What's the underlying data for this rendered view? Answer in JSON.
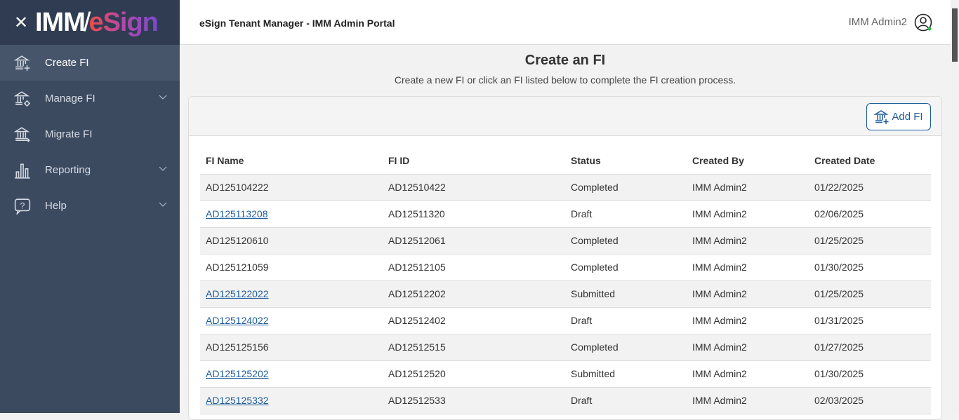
{
  "sidebar": {
    "logo": "IMM/eSign",
    "items": [
      {
        "label": "Create FI",
        "icon": "bank-plus-icon",
        "active": true,
        "chevron": false
      },
      {
        "label": "Manage FI",
        "icon": "bank-gear-icon",
        "chevron": true
      },
      {
        "label": "Migrate FI",
        "icon": "bank-arrow-icon",
        "chevron": false
      },
      {
        "label": "Reporting",
        "icon": "bar-chart-icon",
        "chevron": true
      },
      {
        "label": "Help",
        "icon": "help-bubble-icon",
        "chevron": true
      }
    ]
  },
  "header": {
    "title": "eSign Tenant Manager - IMM Admin Portal",
    "user": "IMM Admin2"
  },
  "main": {
    "title": "Create an FI",
    "subtitle": "Create a new FI or click an FI listed below to complete the FI creation process.",
    "add_label": "Add FI",
    "columns": [
      "FI Name",
      "FI ID",
      "Status",
      "Created By",
      "Created Date"
    ],
    "rows": [
      {
        "name": "AD125104222",
        "id": "AD12510422",
        "status": "Completed",
        "by": "IMM Admin2",
        "date": "01/22/2025",
        "link": false
      },
      {
        "name": "AD125113208",
        "id": "AD12511320",
        "status": "Draft",
        "by": "IMM Admin2",
        "date": "02/06/2025",
        "link": true
      },
      {
        "name": "AD125120610",
        "id": "AD12512061",
        "status": "Completed",
        "by": "IMM Admin2",
        "date": "01/25/2025",
        "link": false
      },
      {
        "name": "AD125121059",
        "id": "AD12512105",
        "status": "Completed",
        "by": "IMM Admin2",
        "date": "01/30/2025",
        "link": false
      },
      {
        "name": "AD125122022",
        "id": "AD12512202",
        "status": "Submitted",
        "by": "IMM Admin2",
        "date": "01/25/2025",
        "link": true
      },
      {
        "name": "AD125124022",
        "id": "AD12512402",
        "status": "Draft",
        "by": "IMM Admin2",
        "date": "01/31/2025",
        "link": true
      },
      {
        "name": "AD125125156",
        "id": "AD12512515",
        "status": "Completed",
        "by": "IMM Admin2",
        "date": "01/27/2025",
        "link": false
      },
      {
        "name": "AD125125202",
        "id": "AD12512520",
        "status": "Submitted",
        "by": "IMM Admin2",
        "date": "01/30/2025",
        "link": true
      },
      {
        "name": "AD125125332",
        "id": "AD12512533",
        "status": "Draft",
        "by": "IMM Admin2",
        "date": "02/03/2025",
        "link": true
      }
    ]
  },
  "colors": {
    "sidebar": "#3c4a60",
    "accent": "#1d5d9b"
  }
}
